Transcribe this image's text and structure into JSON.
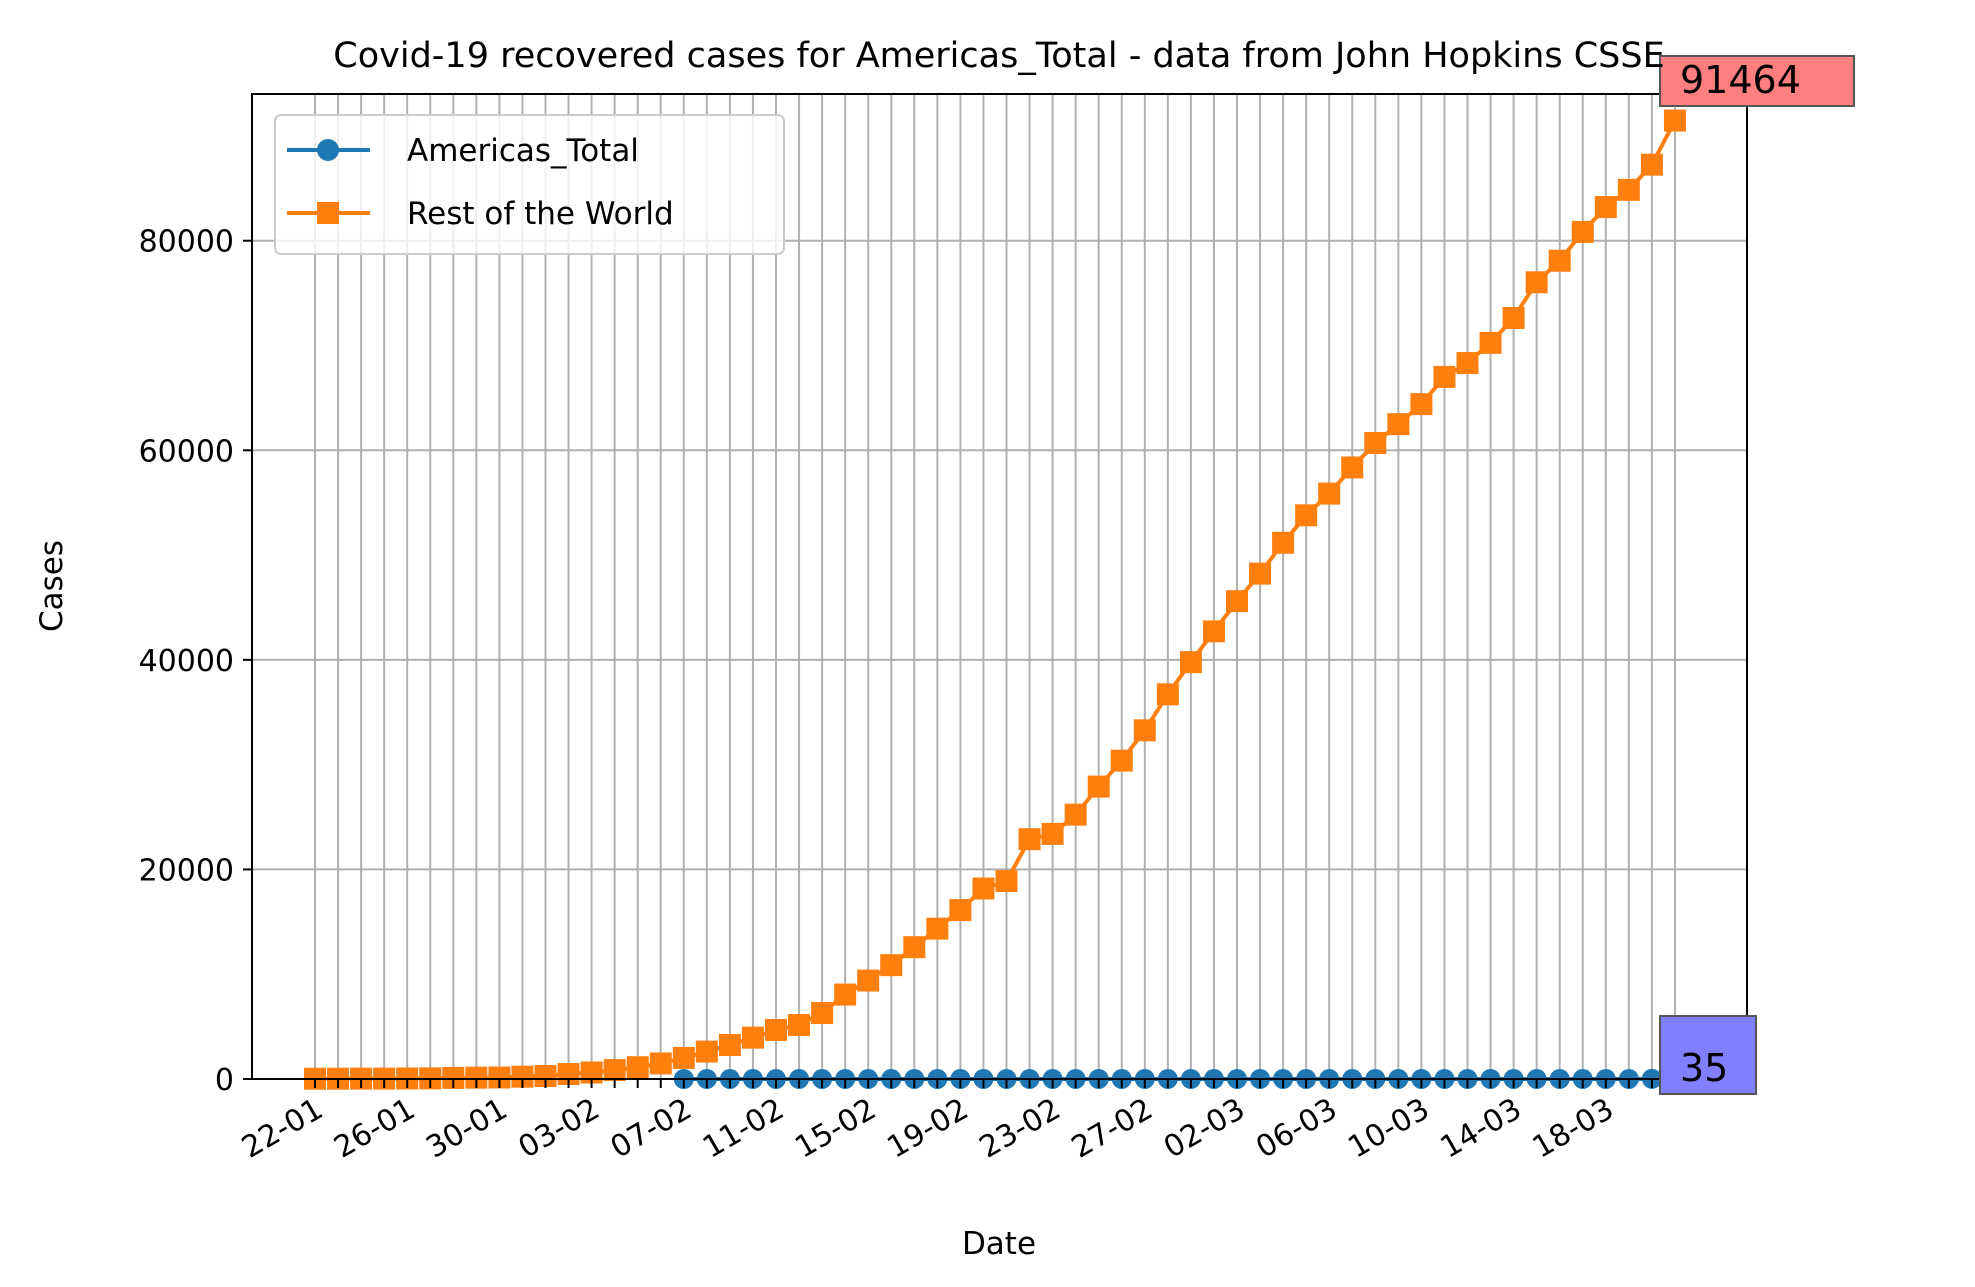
{
  "chart_data": {
    "type": "line",
    "title": "Covid-19 recovered cases for Americas_Total - data from John Hopkins CSSE",
    "xlabel": "Date",
    "ylabel": "Cases",
    "ylim": [
      0,
      94000
    ],
    "y_ticks": [
      0,
      20000,
      40000,
      60000,
      80000
    ],
    "y_tick_labels": [
      "0",
      "20000",
      "40000",
      "60000",
      "80000"
    ],
    "x_tick_labels": [
      "22-01",
      "26-01",
      "30-01",
      "03-02",
      "07-02",
      "11-02",
      "15-02",
      "19-02",
      "23-02",
      "27-02",
      "02-03",
      "06-03",
      "10-03",
      "14-03",
      "18-03"
    ],
    "grid": true,
    "legend_position": "upper-left",
    "x": [
      "22-01",
      "23-01",
      "24-01",
      "25-01",
      "26-01",
      "27-01",
      "28-01",
      "29-01",
      "30-01",
      "31-01",
      "01-02",
      "02-02",
      "03-02",
      "04-02",
      "05-02",
      "06-02",
      "07-02",
      "08-02",
      "09-02",
      "10-02",
      "11-02",
      "12-02",
      "13-02",
      "14-02",
      "15-02",
      "16-02",
      "17-02",
      "18-02",
      "19-02",
      "20-02",
      "21-02",
      "22-02",
      "23-02",
      "24-02",
      "25-02",
      "26-02",
      "27-02",
      "28-02",
      "29-02",
      "01-03",
      "02-03",
      "03-03",
      "04-03",
      "05-03",
      "06-03",
      "07-03",
      "08-03",
      "09-03",
      "10-03",
      "11-03",
      "12-03",
      "13-03",
      "14-03",
      "15-03",
      "16-03",
      "17-03",
      "18-03",
      "19-03",
      "20-03",
      "21-03"
    ],
    "series": [
      {
        "name": "Americas_Total",
        "color": "#1f77b4",
        "marker": "circle",
        "start_index": 16,
        "values": [
          0,
          0,
          0,
          0,
          0,
          0,
          0,
          0,
          0,
          0,
          0,
          0,
          0,
          0,
          0,
          0,
          0,
          1,
          2,
          3,
          3,
          3,
          3,
          3,
          3,
          3,
          3,
          3,
          3,
          3,
          3,
          3,
          3,
          3,
          3,
          3,
          3,
          3,
          3,
          3,
          3,
          3,
          3,
          3,
          3,
          3,
          3,
          3,
          3,
          3,
          3,
          3,
          3,
          3,
          3,
          3,
          3,
          3,
          15,
          35
        ]
      },
      {
        "name": "Rest of the World",
        "color": "#ff7f0e",
        "marker": "square",
        "start_index": 0,
        "values": [
          28,
          30,
          36,
          39,
          52,
          61,
          107,
          126,
          143,
          222,
          284,
          472,
          623,
          852,
          1124,
          1487,
          2011,
          2616,
          3244,
          3946,
          4683,
          5150,
          6295,
          8058,
          9395,
          10865,
          12583,
          14352,
          16121,
          18177,
          18890,
          22886,
          23394,
          25227,
          27905,
          30384,
          33277,
          36711,
          39782,
          42716,
          45602,
          48228,
          51170,
          53796,
          55866,
          58359,
          60694,
          62494,
          64404,
          67003,
          68324,
          70251,
          72624,
          76034,
          78088,
          80840,
          83207,
          84854,
          87256,
          91464
        ]
      }
    ],
    "annotations": [
      {
        "text": "91464",
        "color": "#ff0000",
        "series": "Rest of the World"
      },
      {
        "text": "35",
        "color": "#0000ff",
        "series": "Americas_Total"
      }
    ]
  }
}
